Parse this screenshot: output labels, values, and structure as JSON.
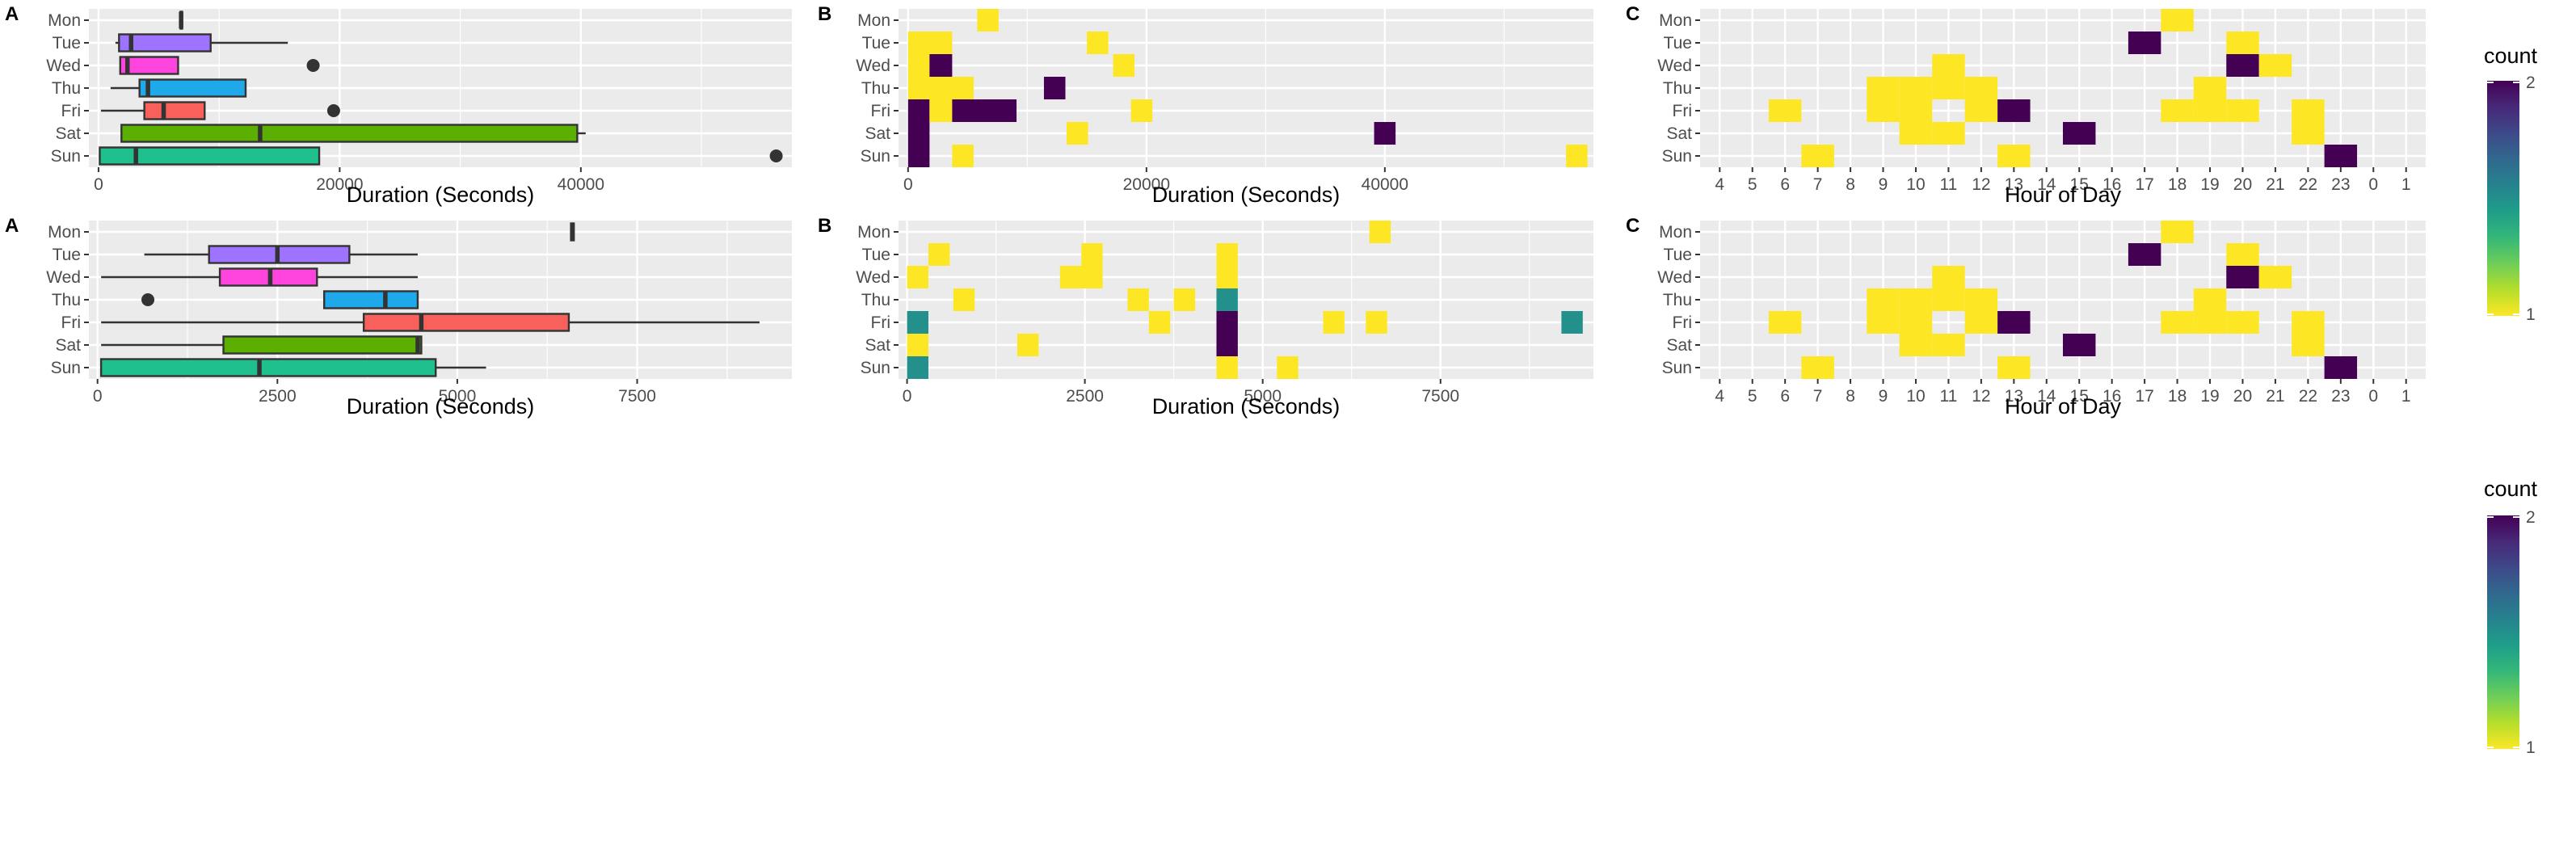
{
  "chart_data": [
    {
      "id": "top-A",
      "tag": "A",
      "type": "boxplot",
      "xlabel": "Duration (Seconds)",
      "categories": [
        "Mon",
        "Tue",
        "Wed",
        "Thu",
        "Fri",
        "Sat",
        "Sun"
      ],
      "xlim": [
        -800,
        57500
      ],
      "xticks": [
        {
          "v": 0,
          "label": "0"
        },
        {
          "v": 20000,
          "label": "20000"
        },
        {
          "v": 40000,
          "label": "40000"
        }
      ],
      "minor_xticks": [
        10000,
        30000,
        50000
      ],
      "boxes": [
        {
          "day": "Mon",
          "color": "#FF00FF",
          "q1": 6800,
          "median": 6850,
          "q3": 6900,
          "lo": 6800,
          "hi": 6900,
          "outliers": []
        },
        {
          "day": "Tue",
          "color": "#9E73FF",
          "q1": 1700,
          "median": 2700,
          "q3": 9300,
          "lo": 1400,
          "hi": 15700,
          "outliers": []
        },
        {
          "day": "Wed",
          "color": "#FF44DD",
          "q1": 1800,
          "median": 2400,
          "q3": 6600,
          "lo": 1800,
          "hi": 6600,
          "outliers": [
            17800
          ]
        },
        {
          "day": "Thu",
          "color": "#1FA8EA",
          "q1": 3400,
          "median": 4100,
          "q3": 12200,
          "lo": 1000,
          "hi": 12200,
          "outliers": []
        },
        {
          "day": "Fri",
          "color": "#F8615B",
          "q1": 3800,
          "median": 5400,
          "q3": 8800,
          "lo": 200,
          "hi": 8800,
          "outliers": [
            19500
          ]
        },
        {
          "day": "Sat",
          "color": "#5AAF00",
          "q1": 1900,
          "median": 13400,
          "q3": 39700,
          "lo": 1900,
          "hi": 40400,
          "outliers": []
        },
        {
          "day": "Sun",
          "color": "#1FC08E",
          "q1": 100,
          "median": 3100,
          "q3": 18300,
          "lo": 100,
          "hi": 18300,
          "outliers": [
            56200
          ]
        }
      ]
    },
    {
      "id": "top-B",
      "tag": "B",
      "type": "heatmap",
      "xlabel": "Duration (Seconds)",
      "categories": [
        "Mon",
        "Tue",
        "Wed",
        "Thu",
        "Fri",
        "Sat",
        "Sun"
      ],
      "xlim": [
        -800,
        57500
      ],
      "xticks": [
        {
          "v": 0,
          "label": "0"
        },
        {
          "v": 20000,
          "label": "20000"
        },
        {
          "v": 40000,
          "label": "40000"
        }
      ],
      "minor_xticks": [
        10000,
        30000,
        50000
      ],
      "cells": [
        {
          "day": "Mon",
          "x0": 5800,
          "x1": 7600,
          "count": 1
        },
        {
          "day": "Tue",
          "x0": 0,
          "x1": 3700,
          "count": 1
        },
        {
          "day": "Tue",
          "x0": 15000,
          "x1": 16800,
          "count": 1
        },
        {
          "day": "Wed",
          "x0": 0,
          "x1": 1800,
          "count": 1
        },
        {
          "day": "Wed",
          "x0": 1800,
          "x1": 3700,
          "count": 2
        },
        {
          "day": "Wed",
          "x0": 17200,
          "x1": 19000,
          "count": 1
        },
        {
          "day": "Thu",
          "x0": 0,
          "x1": 5500,
          "count": 1
        },
        {
          "day": "Thu",
          "x0": 11400,
          "x1": 13200,
          "count": 2
        },
        {
          "day": "Fri",
          "x0": 0,
          "x1": 1800,
          "count": 2
        },
        {
          "day": "Fri",
          "x0": 1800,
          "x1": 3700,
          "count": 1
        },
        {
          "day": "Fri",
          "x0": 3700,
          "x1": 9100,
          "count": 2
        },
        {
          "day": "Fri",
          "x0": 18700,
          "x1": 20500,
          "count": 1
        },
        {
          "day": "Sat",
          "x0": 0,
          "x1": 1800,
          "count": 2
        },
        {
          "day": "Sat",
          "x0": 13300,
          "x1": 15100,
          "count": 1
        },
        {
          "day": "Sat",
          "x0": 39100,
          "x1": 40900,
          "count": 2
        },
        {
          "day": "Sun",
          "x0": 0,
          "x1": 1800,
          "count": 2
        },
        {
          "day": "Sun",
          "x0": 3700,
          "x1": 5500,
          "count": 1
        },
        {
          "day": "Sun",
          "x0": 55200,
          "x1": 57000,
          "count": 1
        }
      ]
    },
    {
      "id": "top-C",
      "tag": "C",
      "type": "heatmap",
      "xlabel": "Hour of Day",
      "categories": [
        "Mon",
        "Tue",
        "Wed",
        "Thu",
        "Fri",
        "Sat",
        "Sun"
      ],
      "hour_labels": [
        "4",
        "5",
        "6",
        "7",
        "8",
        "9",
        "10",
        "11",
        "12",
        "13",
        "14",
        "15",
        "16",
        "17",
        "18",
        "19",
        "20",
        "21",
        "22",
        "23",
        "0",
        "1"
      ],
      "cells": [
        {
          "day": "Mon",
          "hour": "18",
          "count": 1
        },
        {
          "day": "Tue",
          "hour": "17",
          "count": 2
        },
        {
          "day": "Tue",
          "hour": "20",
          "count": 1
        },
        {
          "day": "Wed",
          "hour": "11",
          "count": 1
        },
        {
          "day": "Wed",
          "hour": "20",
          "count": 2
        },
        {
          "day": "Wed",
          "hour": "21",
          "count": 1
        },
        {
          "day": "Thu",
          "hour": "9",
          "count": 1
        },
        {
          "day": "Thu",
          "hour": "10",
          "count": 1
        },
        {
          "day": "Thu",
          "hour": "11",
          "count": 1
        },
        {
          "day": "Thu",
          "hour": "12",
          "count": 1
        },
        {
          "day": "Thu",
          "hour": "19",
          "count": 1
        },
        {
          "day": "Fri",
          "hour": "6",
          "count": 1
        },
        {
          "day": "Fri",
          "hour": "9",
          "count": 1
        },
        {
          "day": "Fri",
          "hour": "10",
          "count": 1
        },
        {
          "day": "Fri",
          "hour": "12",
          "count": 1
        },
        {
          "day": "Fri",
          "hour": "13",
          "count": 2
        },
        {
          "day": "Fri",
          "hour": "18",
          "count": 1
        },
        {
          "day": "Fri",
          "hour": "19",
          "count": 1
        },
        {
          "day": "Fri",
          "hour": "20",
          "count": 1
        },
        {
          "day": "Fri",
          "hour": "22",
          "count": 1
        },
        {
          "day": "Sat",
          "hour": "10",
          "count": 1
        },
        {
          "day": "Sat",
          "hour": "11",
          "count": 1
        },
        {
          "day": "Sat",
          "hour": "15",
          "count": 2
        },
        {
          "day": "Sat",
          "hour": "22",
          "count": 1
        },
        {
          "day": "Sun",
          "hour": "7",
          "count": 1
        },
        {
          "day": "Sun",
          "hour": "13",
          "count": 1
        },
        {
          "day": "Sun",
          "hour": "23",
          "count": 2
        }
      ]
    },
    {
      "id": "bottom-A",
      "tag": "A",
      "type": "boxplot",
      "xlabel": "Duration (Seconds)",
      "categories": [
        "Mon",
        "Tue",
        "Wed",
        "Thu",
        "Fri",
        "Sat",
        "Sun"
      ],
      "xlim": [
        -120,
        9650
      ],
      "xticks": [
        {
          "v": 0,
          "label": "0"
        },
        {
          "v": 2500,
          "label": "2500"
        },
        {
          "v": 5000,
          "label": "5000"
        },
        {
          "v": 7500,
          "label": "7500"
        }
      ],
      "minor_xticks": [
        1250,
        3750,
        6250,
        8750
      ],
      "boxes": [
        {
          "day": "Mon",
          "color": "#FF00FF",
          "q1": 6580,
          "median": 6600,
          "q3": 6620,
          "lo": 6580,
          "hi": 6620,
          "outliers": []
        },
        {
          "day": "Tue",
          "color": "#9E73FF",
          "q1": 1550,
          "median": 2500,
          "q3": 3500,
          "lo": 650,
          "hi": 4450,
          "outliers": []
        },
        {
          "day": "Wed",
          "color": "#FF44DD",
          "q1": 1700,
          "median": 2400,
          "q3": 3050,
          "lo": 50,
          "hi": 4450,
          "outliers": []
        },
        {
          "day": "Thu",
          "color": "#1FA8EA",
          "q1": 3150,
          "median": 4000,
          "q3": 4450,
          "lo": 3150,
          "hi": 4450,
          "outliers": [
            700
          ]
        },
        {
          "day": "Fri",
          "color": "#F8615B",
          "q1": 3700,
          "median": 4500,
          "q3": 6550,
          "lo": 50,
          "hi": 9200,
          "outliers": []
        },
        {
          "day": "Sat",
          "color": "#5AAF00",
          "q1": 1750,
          "median": 4450,
          "q3": 4500,
          "lo": 50,
          "hi": 4500,
          "outliers": []
        },
        {
          "day": "Sun",
          "color": "#1FC08E",
          "q1": 50,
          "median": 2250,
          "q3": 4700,
          "lo": 50,
          "hi": 5400,
          "outliers": []
        }
      ]
    },
    {
      "id": "bottom-B",
      "tag": "B",
      "type": "heatmap",
      "xlabel": "Duration (Seconds)",
      "categories": [
        "Mon",
        "Tue",
        "Wed",
        "Thu",
        "Fri",
        "Sat",
        "Sun"
      ],
      "xlim": [
        -120,
        9650
      ],
      "xticks": [
        {
          "v": 0,
          "label": "0"
        },
        {
          "v": 2500,
          "label": "2500"
        },
        {
          "v": 5000,
          "label": "5000"
        },
        {
          "v": 7500,
          "label": "7500"
        }
      ],
      "minor_xticks": [
        1250,
        3750,
        6250,
        8750
      ],
      "cells": [
        {
          "day": "Mon",
          "x0": 6500,
          "x1": 6800,
          "count": 1
        },
        {
          "day": "Tue",
          "x0": 300,
          "x1": 600,
          "count": 1
        },
        {
          "day": "Tue",
          "x0": 2450,
          "x1": 2750,
          "count": 1
        },
        {
          "day": "Tue",
          "x0": 4350,
          "x1": 4650,
          "count": 1
        },
        {
          "day": "Wed",
          "x0": 0,
          "x1": 300,
          "count": 1
        },
        {
          "day": "Wed",
          "x0": 2150,
          "x1": 2750,
          "count": 1
        },
        {
          "day": "Wed",
          "x0": 4350,
          "x1": 4650,
          "count": 1
        },
        {
          "day": "Thu",
          "x0": 650,
          "x1": 950,
          "count": 1
        },
        {
          "day": "Thu",
          "x0": 3100,
          "x1": 3400,
          "count": 1
        },
        {
          "day": "Thu",
          "x0": 3750,
          "x1": 4050,
          "count": 1
        },
        {
          "day": "Thu",
          "x0": 4350,
          "x1": 4650,
          "count": 1.5
        },
        {
          "day": "Fri",
          "x0": 0,
          "x1": 300,
          "count": 1.5
        },
        {
          "day": "Fri",
          "x0": 3400,
          "x1": 3700,
          "count": 1
        },
        {
          "day": "Fri",
          "x0": 4350,
          "x1": 4650,
          "count": 2
        },
        {
          "day": "Fri",
          "x0": 5850,
          "x1": 6150,
          "count": 1
        },
        {
          "day": "Fri",
          "x0": 6450,
          "x1": 6750,
          "count": 1
        },
        {
          "day": "Fri",
          "x0": 9200,
          "x1": 9500,
          "count": 1.5
        },
        {
          "day": "Sat",
          "x0": 0,
          "x1": 300,
          "count": 1
        },
        {
          "day": "Sat",
          "x0": 1550,
          "x1": 1850,
          "count": 1
        },
        {
          "day": "Sat",
          "x0": 4350,
          "x1": 4650,
          "count": 2
        },
        {
          "day": "Sun",
          "x0": 0,
          "x1": 300,
          "count": 1.5
        },
        {
          "day": "Sun",
          "x0": 4350,
          "x1": 4650,
          "count": 1
        },
        {
          "day": "Sun",
          "x0": 5200,
          "x1": 5500,
          "count": 1
        }
      ]
    },
    {
      "id": "bottom-C",
      "tag": "C",
      "type": "heatmap",
      "xlabel": "Hour of Day",
      "categories": [
        "Mon",
        "Tue",
        "Wed",
        "Thu",
        "Fri",
        "Sat",
        "Sun"
      ],
      "hour_labels": [
        "4",
        "5",
        "6",
        "7",
        "8",
        "9",
        "10",
        "11",
        "12",
        "13",
        "14",
        "15",
        "16",
        "17",
        "18",
        "19",
        "20",
        "21",
        "22",
        "23",
        "0",
        "1"
      ],
      "cells": [
        {
          "day": "Mon",
          "hour": "18",
          "count": 1
        },
        {
          "day": "Tue",
          "hour": "17",
          "count": 2
        },
        {
          "day": "Tue",
          "hour": "20",
          "count": 1
        },
        {
          "day": "Wed",
          "hour": "11",
          "count": 1
        },
        {
          "day": "Wed",
          "hour": "20",
          "count": 2
        },
        {
          "day": "Wed",
          "hour": "21",
          "count": 1
        },
        {
          "day": "Thu",
          "hour": "9",
          "count": 1
        },
        {
          "day": "Thu",
          "hour": "10",
          "count": 1
        },
        {
          "day": "Thu",
          "hour": "11",
          "count": 1
        },
        {
          "day": "Thu",
          "hour": "12",
          "count": 1
        },
        {
          "day": "Thu",
          "hour": "19",
          "count": 1
        },
        {
          "day": "Fri",
          "hour": "6",
          "count": 1
        },
        {
          "day": "Fri",
          "hour": "9",
          "count": 1
        },
        {
          "day": "Fri",
          "hour": "10",
          "count": 1
        },
        {
          "day": "Fri",
          "hour": "12",
          "count": 1
        },
        {
          "day": "Fri",
          "hour": "13",
          "count": 2
        },
        {
          "day": "Fri",
          "hour": "18",
          "count": 1
        },
        {
          "day": "Fri",
          "hour": "19",
          "count": 1
        },
        {
          "day": "Fri",
          "hour": "20",
          "count": 1
        },
        {
          "day": "Fri",
          "hour": "22",
          "count": 1
        },
        {
          "day": "Sat",
          "hour": "10",
          "count": 1
        },
        {
          "day": "Sat",
          "hour": "11",
          "count": 1
        },
        {
          "day": "Sat",
          "hour": "15",
          "count": 2
        },
        {
          "day": "Sat",
          "hour": "22",
          "count": 1
        },
        {
          "day": "Sun",
          "hour": "7",
          "count": 1
        },
        {
          "day": "Sun",
          "hour": "13",
          "count": 1
        },
        {
          "day": "Sun",
          "hour": "23",
          "count": 2
        }
      ]
    }
  ],
  "legends": [
    {
      "id": "top",
      "title": "count",
      "ticks": [
        {
          "v": 2,
          "label": "2"
        },
        {
          "v": 1,
          "label": "1"
        }
      ]
    },
    {
      "id": "bottom",
      "title": "count",
      "ticks": [
        {
          "v": 2,
          "label": "2"
        },
        {
          "v": 1,
          "label": "1"
        }
      ]
    }
  ],
  "colors": {
    "panel_bg": "#EBEBEB",
    "grid": "#FFFFFF",
    "viridis": [
      "#FDE725",
      "#B5DE2B",
      "#6ECE58",
      "#35B779",
      "#1F9E89",
      "#26828E",
      "#31688E",
      "#3E4989",
      "#482878",
      "#440154"
    ],
    "outline": "#333333"
  }
}
